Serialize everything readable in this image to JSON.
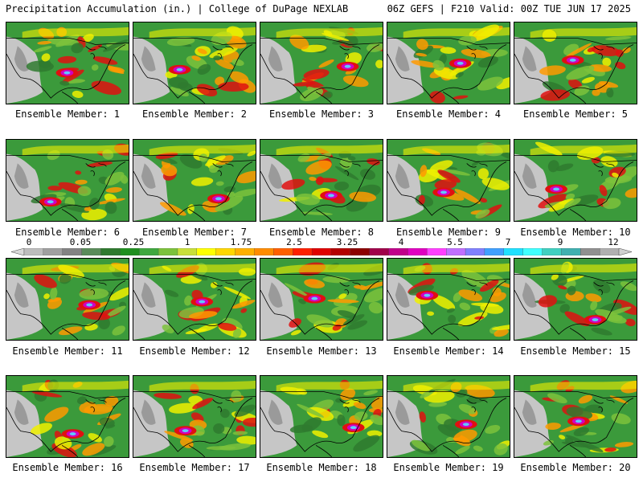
{
  "header": {
    "title_left": "Precipitation Accumulation (in.) | College of DuPage NEXLAB",
    "title_right": "06Z GEFS | F210 Valid: 00Z TUE JUN 17 2025"
  },
  "members": [
    "Ensemble Member: 1",
    "Ensemble Member: 2",
    "Ensemble Member: 3",
    "Ensemble Member: 4",
    "Ensemble Member: 5",
    "Ensemble Member: 6",
    "Ensemble Member: 7",
    "Ensemble Member: 8",
    "Ensemble Member: 9",
    "Ensemble Member: 10",
    "Ensemble Member: 11",
    "Ensemble Member: 12",
    "Ensemble Member: 13",
    "Ensemble Member: 14",
    "Ensemble Member: 15",
    "Ensemble Member: 16",
    "Ensemble Member: 17",
    "Ensemble Member: 18",
    "Ensemble Member: 19",
    "Ensemble Member: 20"
  ],
  "colorbar": {
    "labels": [
      "0",
      "0.05",
      "0.25",
      "1",
      "1.75",
      "2.5",
      "3.25",
      "4",
      "5.5",
      "7",
      "9",
      "12"
    ],
    "colors": [
      "#d9d9d9",
      "#bdbdbd",
      "#a0a0a0",
      "#838383",
      "#5a8c5a",
      "#2f7a2f",
      "#1f8f1f",
      "#3fa83f",
      "#7cc23c",
      "#c8e03a",
      "#ffff00",
      "#ffd700",
      "#ffb000",
      "#ff8c00",
      "#ff6000",
      "#ff2000",
      "#e00000",
      "#b40000",
      "#8c0000",
      "#a0004a",
      "#c0008a",
      "#e000c0",
      "#ff40ff",
      "#c070ff",
      "#8080ff",
      "#40a0ff",
      "#20e0ff",
      "#40ffff",
      "#40d0c0",
      "#40b0b0",
      "#909090",
      "#b0b0b0",
      "#d0d0d0"
    ]
  },
  "map_colors": {
    "land_dry": "#c6c6c6",
    "land_trace": "#9a9a9a",
    "green_dark": "#2f7a2f",
    "green_mid": "#3b9a3b",
    "green_light": "#7cc23c",
    "yellow": "#f0f000",
    "orange": "#ff9a00",
    "red": "#e01010",
    "magenta": "#d000c0",
    "cyan": "#60c8ff",
    "border": "#000000"
  }
}
